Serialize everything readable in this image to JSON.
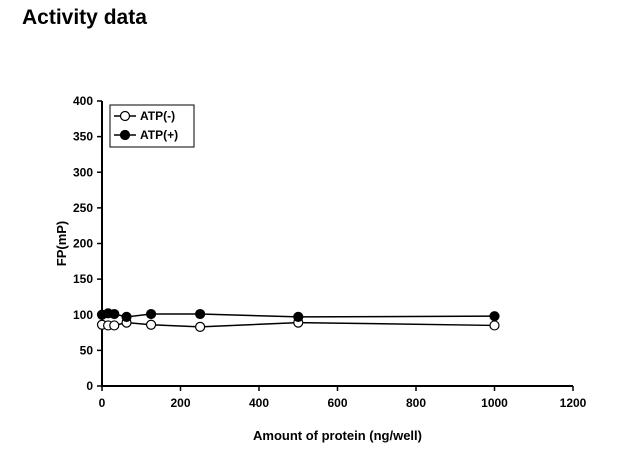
{
  "page": {
    "title": "Activity data"
  },
  "chart_data": {
    "type": "scatter",
    "title": "",
    "xlabel": "Amount of protein (ng/well)",
    "ylabel": "FP(mP)",
    "xlim": [
      0,
      1200
    ],
    "ylim": [
      0,
      400
    ],
    "xticks": [
      0,
      200,
      400,
      600,
      800,
      1000,
      1200
    ],
    "yticks": [
      0,
      50,
      100,
      150,
      200,
      250,
      300,
      350,
      400
    ],
    "grid": false,
    "legend_position": "top-left",
    "series": [
      {
        "name": "ATP(-)",
        "marker": "open-circle",
        "color": "#000000",
        "x": [
          0,
          15.6,
          31.25,
          62.5,
          125,
          250,
          500,
          1000
        ],
        "y": [
          86,
          85,
          85,
          89,
          86,
          83,
          89,
          85
        ]
      },
      {
        "name": "ATP(+)",
        "marker": "filled-circle",
        "color": "#000000",
        "x": [
          0,
          15.6,
          31.25,
          62.5,
          125,
          250,
          500,
          1000
        ],
        "y": [
          100,
          102,
          101,
          97,
          101,
          101,
          97,
          98
        ]
      }
    ]
  }
}
